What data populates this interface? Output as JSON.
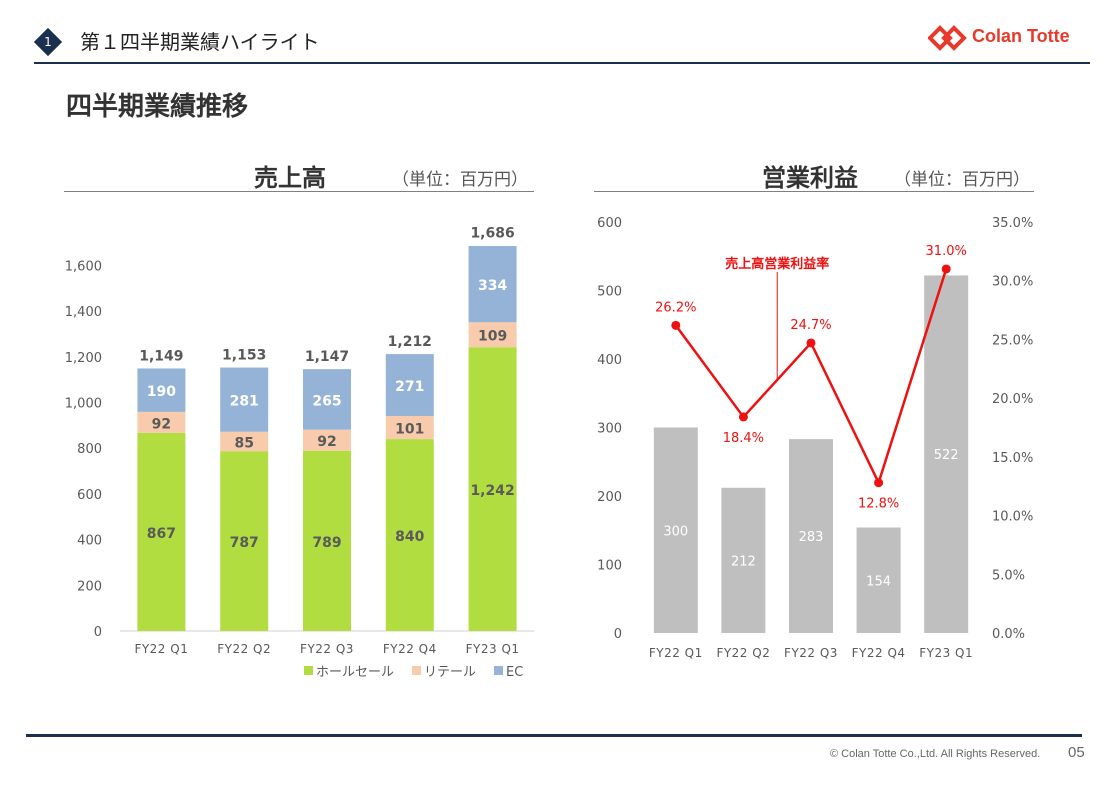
{
  "header": {
    "section_number": "1",
    "title": "第１四半期業績ハイライト",
    "logo_text": "Colan Totte"
  },
  "page_title": "四半期業績推移",
  "panels": {
    "sales": {
      "title": "売上高",
      "unit": "（単位：百万円）"
    },
    "operating": {
      "title": "営業利益",
      "unit": "（単位：百万円）"
    }
  },
  "chart_data": [
    {
      "type": "bar",
      "stacked": true,
      "title": "売上高",
      "categories": [
        "FY22 Q1",
        "FY22 Q2",
        "FY22 Q3",
        "FY22 Q4",
        "FY23 Q1"
      ],
      "series": [
        {
          "name": "ホールセール",
          "values": [
            867,
            787,
            789,
            840,
            1242
          ],
          "color": "#b1dd41",
          "label_color": "#5a5a5a"
        },
        {
          "name": "リテール",
          "values": [
            92,
            85,
            92,
            101,
            109
          ],
          "color": "#f8cbad",
          "label_color": "#5a5a5a"
        },
        {
          "name": "EC",
          "values": [
            190,
            281,
            265,
            271,
            334
          ],
          "color": "#95b3d7",
          "label_color": "#ffffff"
        }
      ],
      "value_labels": {
        "ホールセール": [
          "867",
          "787",
          "789",
          "840",
          "1,242"
        ],
        "リテール": [
          "92",
          "85",
          "92",
          "101",
          "109"
        ],
        "EC": [
          "190",
          "281",
          "265",
          "271",
          "334"
        ]
      },
      "totals": [
        1149,
        1153,
        1147,
        1212,
        1686
      ],
      "total_labels": [
        "1,149",
        "1,153",
        "1,147",
        "1,212",
        "1,686"
      ],
      "ylim": [
        0,
        1700
      ],
      "y_ticks": [
        0,
        200,
        400,
        600,
        800,
        1000,
        1200,
        1400,
        1600
      ],
      "y_tick_labels": [
        "0",
        "200",
        "400",
        "600",
        "800",
        "1,000",
        "1,200",
        "1,400",
        "1,600"
      ],
      "grid": false,
      "legend": "bottom"
    },
    {
      "type": "bar",
      "title": "営業利益",
      "categories": [
        "FY22 Q1",
        "FY22 Q2",
        "FY22 Q3",
        "FY22 Q4",
        "FY23 Q1"
      ],
      "bars": {
        "values": [
          300,
          212,
          283,
          154,
          522
        ],
        "color": "#bfbfbf",
        "label_color": "#ffffff"
      },
      "bar_labels": [
        "300",
        "212",
        "283",
        "154",
        "522"
      ],
      "line": {
        "name": "売上高営業利益率",
        "values": [
          26.2,
          18.4,
          24.7,
          12.8,
          31.0
        ],
        "labels": [
          "26.2%",
          "18.4%",
          "24.7%",
          "12.8%",
          "31.0%"
        ],
        "color": "#ee1111"
      },
      "ylim": [
        0,
        600
      ],
      "y_ticks": [
        0,
        100,
        200,
        300,
        400,
        500,
        600
      ],
      "y_tick_labels": [
        "0",
        "100",
        "200",
        "300",
        "400",
        "500",
        "600"
      ],
      "y2lim": [
        0,
        35
      ],
      "y2_ticks": [
        0,
        5,
        10,
        15,
        20,
        25,
        30,
        35
      ],
      "y2_tick_labels": [
        "0.0%",
        "5.0%",
        "10.0%",
        "15.0%",
        "20.0%",
        "25.0%",
        "30.0%",
        "35.0%"
      ],
      "grid": false,
      "legend": "none"
    }
  ],
  "footer": {
    "copyright": "© Colan Totte Co.,Ltd. All Rights Reserved.",
    "page_number": "05"
  }
}
